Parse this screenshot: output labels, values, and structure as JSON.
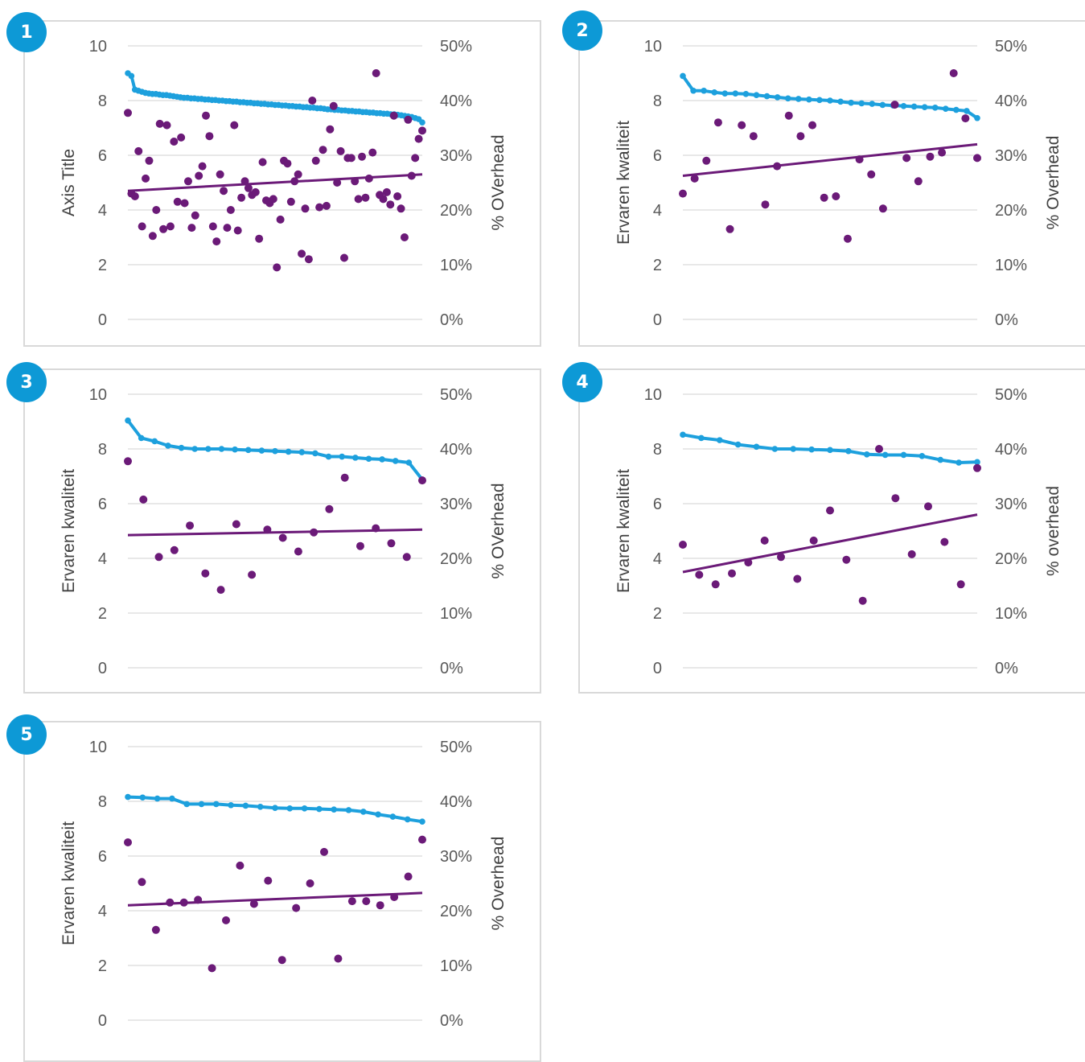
{
  "colors": {
    "badge": "#0d99d6",
    "overhead_line": "#1da0dd",
    "quality_points": "#6b1a78",
    "trendline": "#6b1a78",
    "gridline": "#d9d9d9",
    "frame": "#d9d9d9"
  },
  "chart_data": [
    {
      "badge": "1",
      "type": "scatter",
      "ylabel": "Axis Title",
      "y2label": "% OVerhead",
      "ylim": [
        0,
        10
      ],
      "y2lim": [
        0,
        0.5
      ],
      "yticks": [
        "0",
        "2",
        "4",
        "6",
        "8",
        "10"
      ],
      "y2ticks": [
        "0%",
        "10%",
        "20%",
        "30%",
        "40%",
        "50%"
      ],
      "grid": true,
      "series": [
        {
          "style": "line-markers",
          "axis": "secondary",
          "values": [
            0.45,
            0.445,
            0.42,
            0.418,
            0.416,
            0.414,
            0.413,
            0.412,
            0.412,
            0.411,
            0.41,
            0.41,
            0.409,
            0.408,
            0.407,
            0.406,
            0.405,
            0.405,
            0.404,
            0.404,
            0.403,
            0.403,
            0.402,
            0.402,
            0.401,
            0.401,
            0.4,
            0.4,
            0.399,
            0.399,
            0.398,
            0.398,
            0.397,
            0.397,
            0.396,
            0.396,
            0.395,
            0.395,
            0.394,
            0.394,
            0.393,
            0.393,
            0.392,
            0.392,
            0.391,
            0.391,
            0.39,
            0.39,
            0.389,
            0.389,
            0.388,
            0.388,
            0.387,
            0.387,
            0.386,
            0.386,
            0.385,
            0.384,
            0.384,
            0.383,
            0.383,
            0.382,
            0.382,
            0.381,
            0.381,
            0.38,
            0.38,
            0.379,
            0.379,
            0.378,
            0.378,
            0.377,
            0.377,
            0.376,
            0.376,
            0.375,
            0.375,
            0.374,
            0.373,
            0.372,
            0.371,
            0.37,
            0.368,
            0.366,
            0.36
          ]
        },
        {
          "style": "points",
          "axis": "primary",
          "values": [
            7.55,
            4.6,
            4.5,
            6.15,
            3.4,
            5.15,
            5.8,
            3.05,
            4,
            7.15,
            3.3,
            7.1,
            3.4,
            6.5,
            4.3,
            6.65,
            4.25,
            5.05,
            3.35,
            3.8,
            5.25,
            5.6,
            7.45,
            6.7,
            3.4,
            2.85,
            5.3,
            4.7,
            3.35,
            4,
            7.1,
            3.25,
            4.45,
            5.05,
            4.8,
            4.55,
            4.65,
            2.95,
            5.75,
            4.35,
            4.25,
            4.4,
            1.9,
            3.65,
            5.8,
            5.7,
            4.3,
            5.05,
            5.3,
            2.4,
            4.05,
            2.2,
            8,
            5.8,
            4.1,
            6.2,
            4.15,
            6.95,
            7.8,
            5,
            6.15,
            2.25,
            5.9,
            5.9,
            5.05,
            4.4,
            5.95,
            4.45,
            5.15,
            6.1,
            9,
            4.55,
            4.4,
            4.65,
            4.2,
            7.45,
            4.5,
            4.05,
            3,
            7.3,
            5.25,
            5.9,
            6.6,
            6.9
          ]
        }
      ],
      "trendline": [
        4.7,
        5.3
      ]
    },
    {
      "badge": "2",
      "type": "scatter",
      "ylabel": "Ervaren kwaliteit",
      "y2label": "% Overhead",
      "ylim": [
        0,
        10
      ],
      "y2lim": [
        0,
        0.5
      ],
      "yticks": [
        "0",
        "2",
        "4",
        "6",
        "8",
        "10"
      ],
      "y2ticks": [
        "0%",
        "10%",
        "20%",
        "30%",
        "40%",
        "50%"
      ],
      "grid": true,
      "series": [
        {
          "style": "line-markers",
          "axis": "secondary",
          "values": [
            0.445,
            0.418,
            0.418,
            0.415,
            0.413,
            0.413,
            0.412,
            0.41,
            0.408,
            0.406,
            0.404,
            0.403,
            0.402,
            0.401,
            0.4,
            0.398,
            0.396,
            0.395,
            0.394,
            0.392,
            0.391,
            0.39,
            0.389,
            0.388,
            0.387,
            0.385,
            0.383,
            0.381,
            0.368
          ]
        },
        {
          "style": "points",
          "axis": "primary",
          "values": [
            4.6,
            5.15,
            5.8,
            7.2,
            3.3,
            7.1,
            6.7,
            4.2,
            5.6,
            7.45,
            6.7,
            7.1,
            4.45,
            4.5,
            2.95,
            5.85,
            5.3,
            4.05,
            7.85,
            5.9,
            5.05,
            5.95,
            6.1,
            9,
            7.35,
            5.9
          ]
        }
      ],
      "trendline": [
        5.25,
        6.4
      ]
    },
    {
      "badge": "3",
      "type": "scatter",
      "ylabel": "Ervaren kwaliteit",
      "y2label": "% OVerhead",
      "ylim": [
        0,
        10
      ],
      "y2lim": [
        0,
        0.5
      ],
      "yticks": [
        "0",
        "2",
        "4",
        "6",
        "8",
        "10"
      ],
      "y2ticks": [
        "0%",
        "10%",
        "20%",
        "30%",
        "40%",
        "50%"
      ],
      "grid": true,
      "series": [
        {
          "style": "line-markers",
          "axis": "secondary",
          "values": [
            0.452,
            0.42,
            0.414,
            0.406,
            0.402,
            0.4,
            0.4,
            0.4,
            0.399,
            0.398,
            0.397,
            0.396,
            0.395,
            0.394,
            0.392,
            0.386,
            0.386,
            0.384,
            0.382,
            0.381,
            0.378,
            0.375,
            0.344
          ]
        },
        {
          "style": "points",
          "axis": "primary",
          "values": [
            7.55,
            6.15,
            4.05,
            4.3,
            5.2,
            3.45,
            2.85,
            5.25,
            3.4,
            5.05,
            4.75,
            4.25,
            4.95,
            5.8,
            6.95,
            4.45,
            5.1,
            4.55,
            4.05,
            6.85
          ]
        }
      ],
      "trendline": [
        4.85,
        5.05
      ]
    },
    {
      "badge": "4",
      "type": "scatter",
      "ylabel": "Ervaren kwaliteit",
      "y2label": "% overhead",
      "ylim": [
        0,
        10
      ],
      "y2lim": [
        0,
        0.5
      ],
      "yticks": [
        "0",
        "2",
        "4",
        "6",
        "8",
        "10"
      ],
      "y2ticks": [
        "0%",
        "10%",
        "20%",
        "30%",
        "40%",
        "50%"
      ],
      "grid": true,
      "series": [
        {
          "style": "line-markers",
          "axis": "secondary",
          "values": [
            0.426,
            0.42,
            0.416,
            0.408,
            0.404,
            0.4,
            0.4,
            0.399,
            0.398,
            0.396,
            0.39,
            0.389,
            0.389,
            0.387,
            0.38,
            0.375,
            0.376
          ]
        },
        {
          "style": "points",
          "axis": "primary",
          "values": [
            4.5,
            3.4,
            3.05,
            3.45,
            3.85,
            4.65,
            4.05,
            3.25,
            4.65,
            5.75,
            3.95,
            2.45,
            8,
            6.2,
            4.15,
            5.9,
            4.6,
            3.05,
            7.3
          ]
        }
      ],
      "trendline": [
        3.5,
        5.6
      ]
    },
    {
      "badge": "5",
      "type": "scatter",
      "ylabel": "Ervaren kwaliteit",
      "y2label": "% Overhead",
      "ylim": [
        0,
        10
      ],
      "y2lim": [
        0,
        0.5
      ],
      "yticks": [
        "0",
        "2",
        "4",
        "6",
        "8",
        "10"
      ],
      "y2ticks": [
        "0%",
        "10%",
        "20%",
        "30%",
        "40%",
        "50%"
      ],
      "grid": true,
      "series": [
        {
          "style": "line-markers",
          "axis": "secondary",
          "values": [
            0.408,
            0.407,
            0.405,
            0.405,
            0.395,
            0.395,
            0.395,
            0.393,
            0.392,
            0.39,
            0.388,
            0.387,
            0.387,
            0.386,
            0.385,
            0.384,
            0.381,
            0.376,
            0.372,
            0.367,
            0.363
          ]
        },
        {
          "style": "points",
          "axis": "primary",
          "values": [
            6.5,
            5.05,
            3.3,
            4.3,
            4.3,
            4.4,
            1.9,
            3.65,
            5.65,
            4.25,
            5.1,
            2.2,
            4.1,
            5,
            6.15,
            2.25,
            4.35,
            4.35,
            4.2,
            4.5,
            5.25,
            6.6
          ]
        }
      ],
      "trendline": [
        4.2,
        4.65
      ]
    }
  ]
}
